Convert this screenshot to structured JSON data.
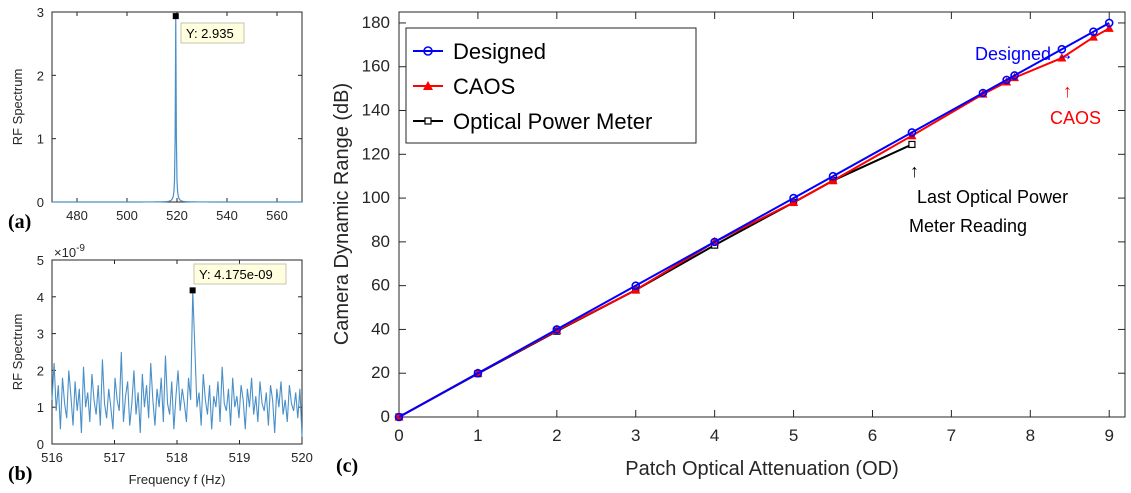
{
  "panel_labels": {
    "a": "(a)",
    "b": "(b)",
    "c": "(c)"
  },
  "chart_data": [
    {
      "id": "a",
      "type": "line",
      "xlabel": "",
      "ylabel": "RF Spectrum",
      "xlim": [
        470,
        570
      ],
      "ylim": [
        0,
        3
      ],
      "xticks": [
        "480",
        "500",
        "520",
        "540",
        "560"
      ],
      "yticks": [
        "0",
        "1",
        "2",
        "3"
      ],
      "color": "#4a90c8",
      "peak": {
        "x": 519.5,
        "y": 2.935
      },
      "datatip": "Y: 2.935"
    },
    {
      "id": "b",
      "type": "line",
      "xlabel": "Frequency f (Hz)",
      "ylabel": "RF Spectrum",
      "exponent": "×10",
      "exponent_power": "-9",
      "xlim": [
        516,
        520
      ],
      "ylim": [
        0,
        5
      ],
      "xticks": [
        "516",
        "517",
        "518",
        "519",
        "520"
      ],
      "yticks": [
        "0",
        "1",
        "2",
        "3",
        "4",
        "5"
      ],
      "color": "#4a90c8",
      "peak": {
        "x": 518.25,
        "y": 4.175
      },
      "datatip": "Y: 4.175e-09",
      "noise_y": [
        1.2,
        2.2,
        0.9,
        1.6,
        0.4,
        1.8,
        1.1,
        0.7,
        2.0,
        1.3,
        0.5,
        1.7,
        0.9,
        1.5,
        0.3,
        2.1,
        1.0,
        1.4,
        0.6,
        1.9,
        1.2,
        0.8,
        1.6,
        0.5,
        2.3,
        1.1,
        0.7,
        1.5,
        1.0,
        0.4,
        1.8,
        1.2,
        0.9,
        2.5,
        0.6,
        1.3,
        1.7,
        0.5,
        1.1,
        2.0,
        0.8,
        1.4,
        0.3,
        1.9,
        1.0,
        1.6,
        0.7,
        2.2,
        1.2,
        0.5,
        1.5,
        1.0,
        1.8,
        0.6,
        2.4,
        1.1,
        0.8,
        1.7,
        0.4,
        1.3,
        2.0,
        0.9,
        1.5,
        1.1,
        0.6,
        1.8,
        1.2,
        0.7,
        2.6,
        1.0,
        1.4,
        0.5,
        1.9,
        1.2,
        0.8,
        1.6,
        0.4,
        1.3,
        1.0,
        1.7,
        0.6,
        2.1,
        1.1,
        0.9,
        1.5,
        0.5,
        1.8,
        1.0,
        1.3,
        0.7,
        1.6,
        1.2,
        0.4,
        1.5,
        1.0,
        1.8,
        0.8,
        1.3,
        0.6,
        1.7,
        1.1,
        0.9,
        1.4,
        0.5,
        1.6,
        1.2,
        0.3,
        1.5,
        1.0,
        1.7,
        0.8,
        1.2,
        0.6,
        1.6,
        1.1,
        0.9,
        1.4,
        0.7,
        1.5,
        0.2
      ]
    },
    {
      "id": "c",
      "type": "line",
      "xlabel": "Patch Optical Attenuation (OD)",
      "ylabel": "Camera Dynamic Range (dB)",
      "xlim": [
        0,
        9.2
      ],
      "ylim": [
        0,
        185
      ],
      "xticks": [
        "0",
        "1",
        "2",
        "3",
        "4",
        "5",
        "6",
        "7",
        "8",
        "9"
      ],
      "yticks": [
        "0",
        "20",
        "40",
        "60",
        "80",
        "100",
        "120",
        "140",
        "160",
        "180"
      ],
      "legend_position": "top-left",
      "series": [
        {
          "name": "Designed",
          "color": "#0000ff",
          "marker": "circle",
          "x": [
            0,
            1,
            2,
            3,
            4,
            5,
            5.5,
            6.5,
            7.4,
            7.7,
            7.8,
            8.4,
            8.8,
            9
          ],
          "y": [
            0,
            20,
            40,
            60,
            80,
            100,
            110,
            130,
            148,
            154,
            156,
            168,
            176,
            180
          ]
        },
        {
          "name": "CAOS",
          "color": "#ff0000",
          "marker": "triangle",
          "x": [
            0,
            1,
            2,
            3,
            4,
            5,
            5.5,
            6.5,
            7.4,
            7.7,
            7.8,
            8.4,
            8.8,
            9
          ],
          "y": [
            0,
            20,
            39.5,
            58,
            80,
            98,
            108,
            128.5,
            147.5,
            153,
            155,
            164,
            173.5,
            177.5
          ]
        },
        {
          "name": "Optical Power Meter",
          "color": "#000000",
          "marker": "square",
          "x": [
            0,
            1,
            2,
            3,
            4,
            5,
            5.5,
            6.5
          ],
          "y": [
            0,
            19.8,
            39.2,
            58,
            78.5,
            98,
            108,
            124.5
          ]
        }
      ],
      "annotations": {
        "designed": "Designed →",
        "caos_arrow": "↑",
        "caos": "CAOS",
        "meter_arrow": "↑",
        "meter_line1": "Last Optical Power",
        "meter_line2": "Meter Reading"
      },
      "annotation_colors": {
        "designed": "#0000ff",
        "caos": "#ff0000",
        "meter": "#000000"
      }
    }
  ]
}
